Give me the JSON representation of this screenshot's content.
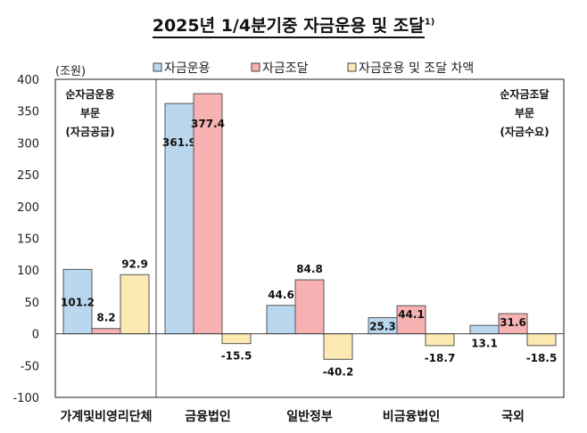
{
  "chart_data": {
    "type": "bar",
    "title": "2025년 1/4분기중 자금운용 및 조달",
    "title_footnote": "1)",
    "ylabel": "(조원)",
    "ylim": [
      -100,
      400
    ],
    "yticks": [
      -100,
      -50,
      0,
      50,
      100,
      150,
      200,
      250,
      300,
      350,
      400
    ],
    "grid": false,
    "legend_placement": "top",
    "categories": [
      "가계및비영리단체",
      "금융법인",
      "일반정부",
      "비금융법인",
      "국외"
    ],
    "series": [
      {
        "name": "자금운용",
        "color": "#b9d8ef",
        "values": [
          101.2,
          361.9,
          44.6,
          25.3,
          13.1
        ]
      },
      {
        "name": "자금조달",
        "color": "#f8b1b2",
        "values": [
          8.2,
          377.4,
          84.8,
          44.1,
          31.6
        ]
      },
      {
        "name": "자금운용 및 조달 차액",
        "color": "#fde9b2",
        "values": [
          92.9,
          -15.5,
          -40.2,
          -18.7,
          -18.5
        ]
      }
    ],
    "annotations": {
      "left": [
        "순자금운용",
        "부문",
        "(자금공급)"
      ],
      "right": [
        "순자금조달",
        "부문",
        "(자금수요)"
      ]
    }
  }
}
